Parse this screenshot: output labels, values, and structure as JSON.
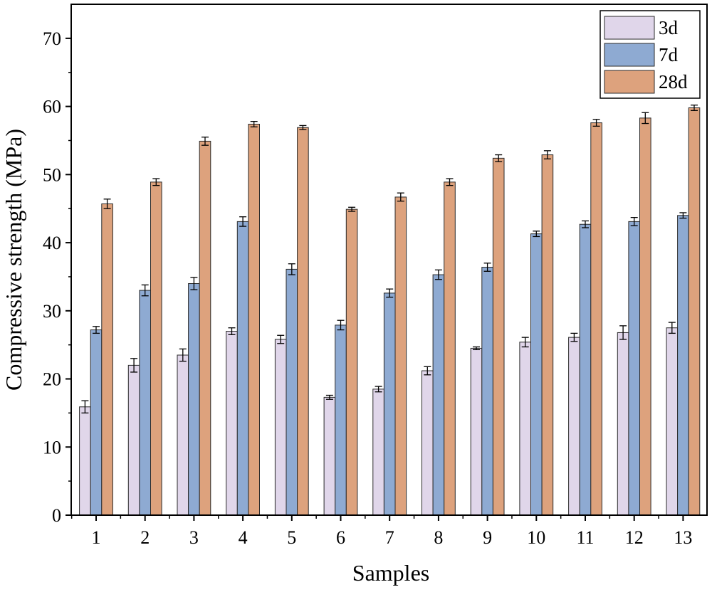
{
  "chart_data": {
    "type": "bar",
    "title": "",
    "xlabel": "Samples",
    "ylabel": "Compressive strength (MPa)",
    "ylim": [
      0,
      75
    ],
    "yticks": [
      0,
      10,
      20,
      30,
      40,
      50,
      60,
      70
    ],
    "categories": [
      "1",
      "2",
      "3",
      "4",
      "5",
      "6",
      "7",
      "8",
      "9",
      "10",
      "11",
      "12",
      "13"
    ],
    "legend_position": "top-right",
    "series": [
      {
        "name": "3d",
        "color": "#e0d6ea",
        "values": [
          15.9,
          22.0,
          23.5,
          27.0,
          25.8,
          17.3,
          18.5,
          21.2,
          24.5,
          25.4,
          26.1,
          26.8,
          27.5
        ],
        "errors": [
          0.9,
          1.0,
          0.9,
          0.5,
          0.6,
          0.3,
          0.4,
          0.6,
          0.2,
          0.7,
          0.6,
          1.0,
          0.8
        ]
      },
      {
        "name": "7d",
        "color": "#8eaad2",
        "values": [
          27.2,
          33.0,
          34.0,
          43.1,
          36.1,
          27.9,
          32.6,
          35.3,
          36.4,
          41.3,
          42.7,
          43.1,
          44.0
        ],
        "errors": [
          0.5,
          0.8,
          0.9,
          0.7,
          0.8,
          0.7,
          0.6,
          0.7,
          0.6,
          0.4,
          0.5,
          0.6,
          0.4
        ]
      },
      {
        "name": "28d",
        "color": "#dda27d",
        "values": [
          45.7,
          48.9,
          54.9,
          57.4,
          56.9,
          44.9,
          46.7,
          48.9,
          52.4,
          52.9,
          57.6,
          58.3,
          59.8
        ],
        "errors": [
          0.7,
          0.5,
          0.6,
          0.4,
          0.3,
          0.3,
          0.6,
          0.5,
          0.5,
          0.6,
          0.5,
          0.8,
          0.4
        ]
      }
    ]
  }
}
